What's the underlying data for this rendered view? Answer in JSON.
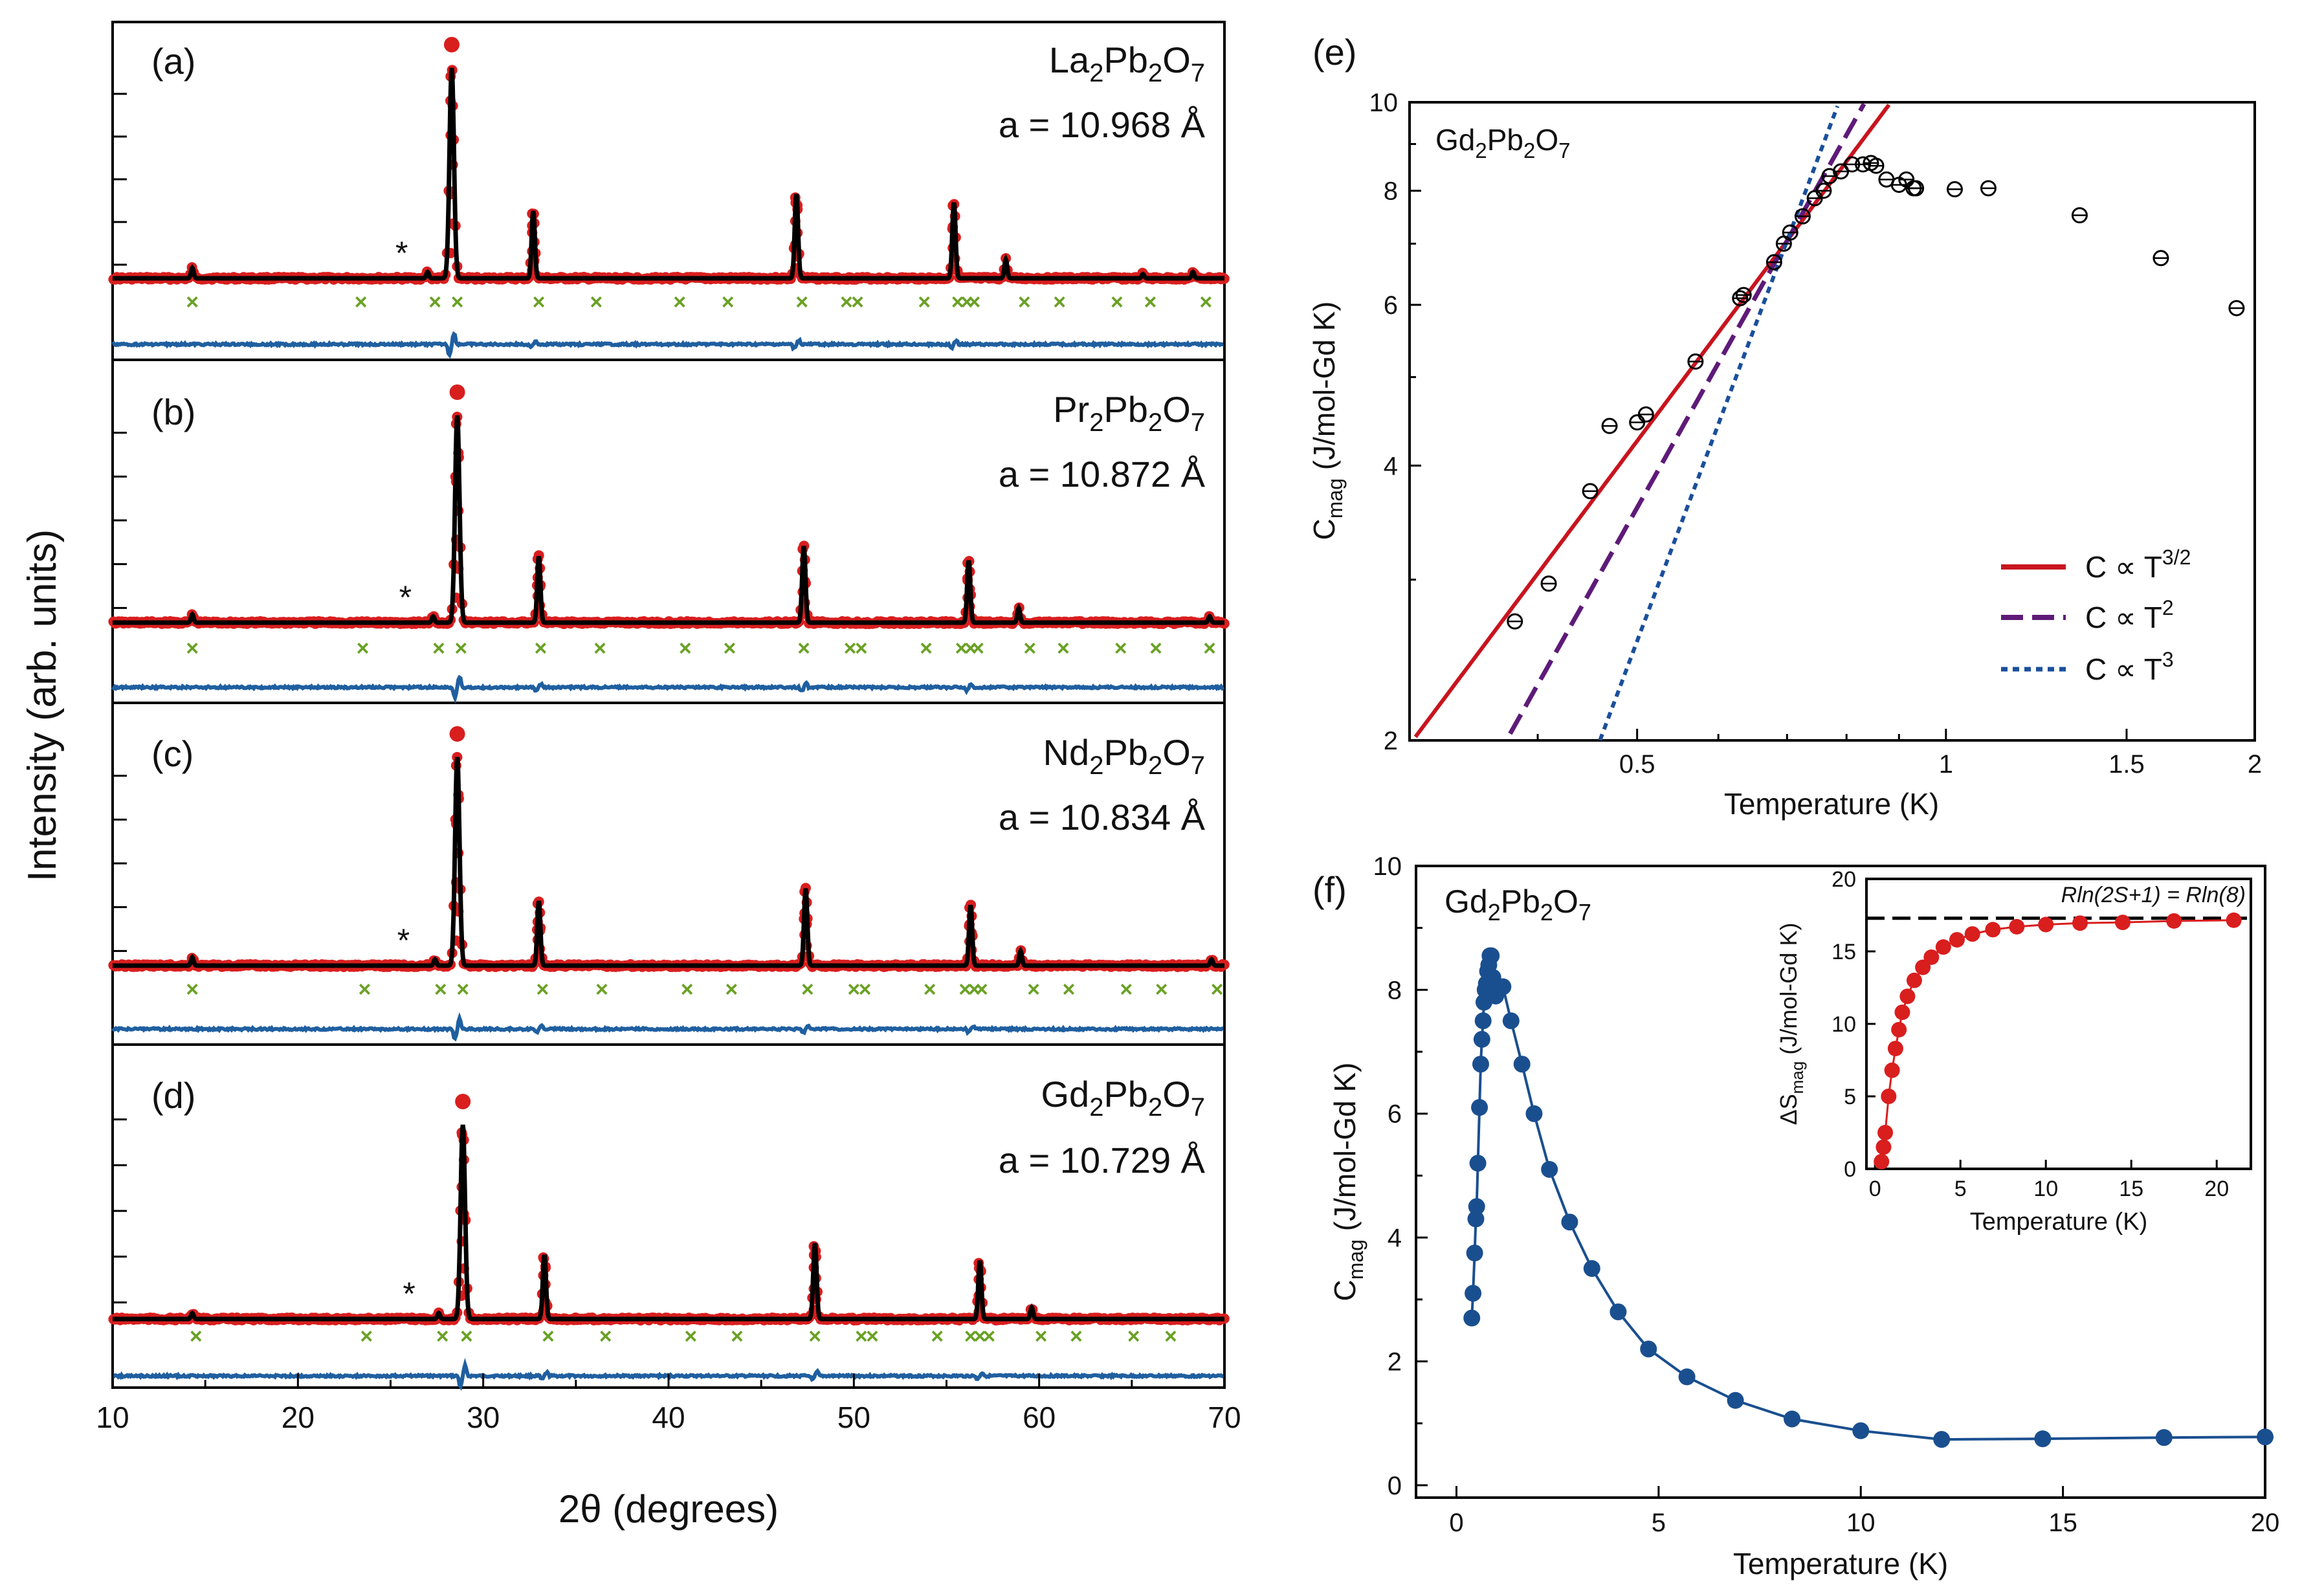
{
  "colors": {
    "calc_line": "#000000",
    "observed": "#d91e1e",
    "difference": "#1f5fa0",
    "bragg": "#6aa125",
    "fit_three_halves": "#c8141e",
    "fit_square": "#5e1a78",
    "fit_cube": "#1a4f9c",
    "cmag_points": "#1a4f8f",
    "entropy_points": "#d91e1e"
  },
  "left_figure": {
    "ylabel": "Intensity (arb. units)",
    "xlabel": "2θ (degrees)",
    "xlim": [
      10,
      70
    ],
    "xticks": [
      "10",
      "20",
      "30",
      "40",
      "50",
      "60",
      "70"
    ],
    "impurity_marker": "*"
  },
  "chart_data": [
    {
      "type": "line",
      "panel": "(a)",
      "compound": {
        "el": "La",
        "n1": "2",
        "mid": "Pb",
        "n2": "2",
        "o": "O",
        "n3": "7"
      },
      "lattice": "a = 10.968 Å",
      "xlim": [
        10,
        70
      ],
      "peaks": [
        {
          "x": 14.3,
          "h": 0.05
        },
        {
          "x": 27.0,
          "h": 0.03
        },
        {
          "x": 28.3,
          "h": 1.0
        },
        {
          "x": 32.7,
          "h": 0.32
        },
        {
          "x": 46.9,
          "h": 0.4
        },
        {
          "x": 55.4,
          "h": 0.36
        },
        {
          "x": 58.2,
          "h": 0.09
        },
        {
          "x": 65.6,
          "h": 0.02
        },
        {
          "x": 68.3,
          "h": 0.03
        }
      ],
      "bragg_positions": [
        14.3,
        23.4,
        27.4,
        28.6,
        33.0,
        36.1,
        40.6,
        43.2,
        47.2,
        49.6,
        50.2,
        53.8,
        55.6,
        56.1,
        56.5,
        59.2,
        61.1,
        64.2,
        66.0,
        69.0
      ],
      "impurity_2theta": 25.6
    },
    {
      "type": "line",
      "panel": "(b)",
      "compound": {
        "el": "Pr",
        "n1": "2",
        "mid": "Pb",
        "n2": "2",
        "o": "O",
        "n3": "7"
      },
      "lattice": "a = 10.872 Å",
      "xlim": [
        10,
        70
      ],
      "peaks": [
        {
          "x": 14.3,
          "h": 0.04
        },
        {
          "x": 27.3,
          "h": 0.03
        },
        {
          "x": 28.6,
          "h": 1.0
        },
        {
          "x": 33.0,
          "h": 0.32
        },
        {
          "x": 47.3,
          "h": 0.37
        },
        {
          "x": 56.2,
          "h": 0.3
        },
        {
          "x": 58.9,
          "h": 0.07
        },
        {
          "x": 69.2,
          "h": 0.03
        }
      ],
      "bragg_positions": [
        14.3,
        23.5,
        27.6,
        28.8,
        33.1,
        36.3,
        40.9,
        43.3,
        47.3,
        49.8,
        50.4,
        53.9,
        55.8,
        56.3,
        56.7,
        59.5,
        61.3,
        64.4,
        66.3,
        69.2
      ],
      "impurity_2theta": 25.8
    },
    {
      "type": "line",
      "panel": "(c)",
      "compound": {
        "el": "Nd",
        "n1": "2",
        "mid": "Pb",
        "n2": "2",
        "o": "O",
        "n3": "7"
      },
      "lattice": "a = 10.834 Å",
      "xlim": [
        10,
        70
      ],
      "peaks": [
        {
          "x": 14.3,
          "h": 0.04
        },
        {
          "x": 27.4,
          "h": 0.03
        },
        {
          "x": 28.6,
          "h": 1.0
        },
        {
          "x": 33.0,
          "h": 0.31
        },
        {
          "x": 47.4,
          "h": 0.37
        },
        {
          "x": 56.3,
          "h": 0.29
        },
        {
          "x": 59.0,
          "h": 0.07
        },
        {
          "x": 69.3,
          "h": 0.03
        }
      ],
      "bragg_positions": [
        14.3,
        23.6,
        27.7,
        28.9,
        33.2,
        36.4,
        41.0,
        43.4,
        47.5,
        50.0,
        50.6,
        54.1,
        56.0,
        56.5,
        56.9,
        59.7,
        61.6,
        64.7,
        66.6,
        69.6
      ],
      "impurity_2theta": 25.7
    },
    {
      "type": "line",
      "panel": "(d)",
      "compound": {
        "el": "Gd",
        "n1": "2",
        "mid": "Pb",
        "n2": "2",
        "o": "O",
        "n3": "7"
      },
      "lattice": "a = 10.729 Å",
      "xlim": [
        10,
        70
      ],
      "peaks": [
        {
          "x": 14.3,
          "h": 0.03
        },
        {
          "x": 27.6,
          "h": 0.03
        },
        {
          "x": 28.9,
          "h": 1.0
        },
        {
          "x": 33.3,
          "h": 0.33
        },
        {
          "x": 47.9,
          "h": 0.39
        },
        {
          "x": 56.8,
          "h": 0.3
        },
        {
          "x": 59.6,
          "h": 0.06
        }
      ],
      "bragg_positions": [
        14.5,
        23.7,
        27.8,
        29.1,
        33.5,
        36.6,
        41.2,
        43.7,
        47.9,
        50.4,
        51.0,
        54.5,
        56.3,
        56.8,
        57.3,
        60.1,
        62.0,
        65.1,
        67.1
      ],
      "impurity_2theta": 26.0
    },
    {
      "type": "scatter",
      "panel": "(e)",
      "compound": {
        "el": "Gd",
        "n1": "2",
        "mid": "Pb",
        "n2": "2",
        "o": "O",
        "n3": "7"
      },
      "xscale": "log",
      "yscale": "log",
      "xlim": [
        0.3,
        2.0
      ],
      "ylim": [
        2,
        10
      ],
      "xticks": [
        {
          "v": 0.5,
          "label": "0.5"
        },
        {
          "v": 1,
          "label": "1"
        },
        {
          "v": 1.5,
          "label": "1.5"
        },
        {
          "v": 2,
          "label": "2"
        }
      ],
      "yticks": [
        {
          "v": 2,
          "label": "2"
        },
        {
          "v": 4,
          "label": "4"
        },
        {
          "v": 6,
          "label": "6"
        },
        {
          "v": 8,
          "label": "8"
        },
        {
          "v": 10,
          "label": "10"
        }
      ],
      "xlabel": "Temperature (K)",
      "ylabel_main": "C",
      "ylabel_sub": "mag",
      "ylabel_rest": " (J/mol-Gd K)",
      "points": [
        [
          0.38,
          2.7
        ],
        [
          0.41,
          2.97
        ],
        [
          0.45,
          3.75
        ],
        [
          0.47,
          4.42
        ],
        [
          0.5,
          4.46
        ],
        [
          0.51,
          4.55
        ],
        [
          0.57,
          5.2
        ],
        [
          0.63,
          6.1
        ],
        [
          0.635,
          6.15
        ],
        [
          0.68,
          6.68
        ],
        [
          0.695,
          7.0
        ],
        [
          0.705,
          7.2
        ],
        [
          0.725,
          7.5
        ],
        [
          0.745,
          7.85
        ],
        [
          0.76,
          8.0
        ],
        [
          0.77,
          8.3
        ],
        [
          0.79,
          8.4
        ],
        [
          0.81,
          8.55
        ],
        [
          0.83,
          8.55
        ],
        [
          0.845,
          8.58
        ],
        [
          0.855,
          8.52
        ],
        [
          0.875,
          8.23
        ],
        [
          0.9,
          8.12
        ],
        [
          0.915,
          8.23
        ],
        [
          0.93,
          8.05
        ],
        [
          0.935,
          8.05
        ],
        [
          1.02,
          8.03
        ],
        [
          1.1,
          8.05
        ],
        [
          1.35,
          7.52
        ],
        [
          1.62,
          6.75
        ],
        [
          1.92,
          5.95
        ]
      ],
      "series": [
        {
          "name": "C ∝ T",
          "exp_label": "3/2",
          "exponent": 1.5,
          "anchor": [
            0.7,
            7.05
          ],
          "style": "solid"
        },
        {
          "name": "C ∝ T",
          "exp_label": "2",
          "exponent": 2,
          "anchor": [
            0.7,
            7.05
          ],
          "style": "dashed"
        },
        {
          "name": "C ∝ T",
          "exp_label": "3",
          "exponent": 3,
          "anchor": [
            0.7,
            7.05
          ],
          "style": "dotted"
        }
      ]
    },
    {
      "type": "line",
      "panel": "(f)",
      "compound": {
        "el": "Gd",
        "n1": "2",
        "mid": "Pb",
        "n2": "2",
        "o": "O",
        "n3": "7"
      },
      "xlim": [
        -1.0,
        20
      ],
      "ylim": [
        -0.2,
        10
      ],
      "xticks": [
        0,
        5,
        10,
        15,
        20
      ],
      "yticks": [
        0,
        2,
        4,
        6,
        8,
        10
      ],
      "xlabel": "Temperature (K)",
      "ylabel_main": "C",
      "ylabel_sub": "mag",
      "ylabel_rest": " (J/mol-Gd K)",
      "points": [
        [
          0.38,
          2.7
        ],
        [
          0.41,
          3.1
        ],
        [
          0.45,
          3.75
        ],
        [
          0.48,
          4.3
        ],
        [
          0.5,
          4.5
        ],
        [
          0.53,
          5.2
        ],
        [
          0.57,
          6.1
        ],
        [
          0.6,
          6.8
        ],
        [
          0.63,
          7.2
        ],
        [
          0.66,
          7.5
        ],
        [
          0.68,
          7.8
        ],
        [
          0.71,
          8.0
        ],
        [
          0.74,
          8.1
        ],
        [
          0.77,
          8.3
        ],
        [
          0.8,
          8.4
        ],
        [
          0.83,
          8.55
        ],
        [
          0.86,
          8.55
        ],
        [
          0.9,
          8.2
        ],
        [
          0.93,
          8.1
        ],
        [
          0.97,
          7.9
        ],
        [
          1.15,
          8.05
        ],
        [
          1.35,
          7.5
        ],
        [
          1.62,
          6.8
        ],
        [
          1.92,
          6.0
        ],
        [
          2.3,
          5.1
        ],
        [
          2.8,
          4.25
        ],
        [
          3.35,
          3.5
        ],
        [
          4.0,
          2.8
        ],
        [
          4.75,
          2.2
        ],
        [
          5.7,
          1.75
        ],
        [
          6.9,
          1.37
        ],
        [
          8.3,
          1.07
        ],
        [
          10.0,
          0.88
        ],
        [
          12.0,
          0.74
        ],
        [
          14.5,
          0.75
        ],
        [
          17.5,
          0.77
        ],
        [
          20.0,
          0.78
        ]
      ],
      "inset": {
        "type": "scatter",
        "xlim": [
          -0.5,
          22
        ],
        "ylim": [
          0,
          20
        ],
        "xticks": [
          0,
          5,
          10,
          15,
          20
        ],
        "yticks": [
          0,
          5,
          10,
          15,
          20
        ],
        "xlabel": "Temperature (K)",
        "ylabel_main": "ΔS",
        "ylabel_sub": "mag",
        "ylabel_rest": " (J/mol-Gd K)",
        "reference_value": 17.29,
        "reference_label": "Rln(2S+1) = Rln(8)",
        "points": [
          [
            0.38,
            0.5
          ],
          [
            0.5,
            1.5
          ],
          [
            0.6,
            2.5
          ],
          [
            0.8,
            5.0
          ],
          [
            1.0,
            6.8
          ],
          [
            1.2,
            8.3
          ],
          [
            1.4,
            9.6
          ],
          [
            1.6,
            10.8
          ],
          [
            1.9,
            11.9
          ],
          [
            2.3,
            13.0
          ],
          [
            2.8,
            13.9
          ],
          [
            3.3,
            14.6
          ],
          [
            4.0,
            15.3
          ],
          [
            4.8,
            15.8
          ],
          [
            5.7,
            16.2
          ],
          [
            6.9,
            16.5
          ],
          [
            8.3,
            16.7
          ],
          [
            10.0,
            16.85
          ],
          [
            12.0,
            16.95
          ],
          [
            14.5,
            17.0
          ],
          [
            17.5,
            17.1
          ],
          [
            21.0,
            17.15
          ]
        ]
      }
    }
  ]
}
